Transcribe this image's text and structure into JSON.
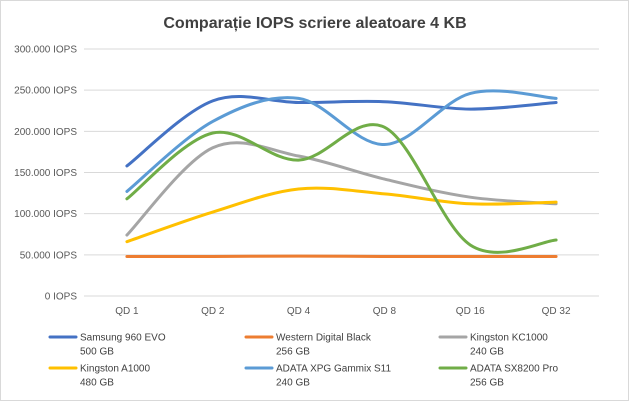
{
  "chart_data": {
    "type": "line",
    "title": "Comparație IOPS scriere aleatoare 4 KB",
    "xlabel": "",
    "ylabel": "",
    "categories": [
      "QD 1",
      "QD 2",
      "QD 4",
      "QD 8",
      "QD 16",
      "QD 32"
    ],
    "ylim": [
      0,
      300000
    ],
    "yticks": [
      0,
      50000,
      100000,
      150000,
      200000,
      250000,
      300000
    ],
    "ytick_labels": [
      "0 IOPS",
      "50.000 IOPS",
      "100.000 IOPS",
      "150.000 IOPS",
      "200.000 IOPS",
      "250.000 IOPS",
      "300.000 IOPS"
    ],
    "grid": true,
    "smooth": true,
    "legend_position": "bottom",
    "series": [
      {
        "name": "Samsung 960 EVO",
        "capacity": "500 GB",
        "color": "#4472C4",
        "values": [
          158000,
          237000,
          235000,
          236000,
          227000,
          235000
        ]
      },
      {
        "name": "Western Digital Black",
        "capacity": "256 GB",
        "color": "#ED7D31",
        "values": [
          48000,
          48000,
          48500,
          48000,
          48000,
          48000
        ]
      },
      {
        "name": "Kingston KC1000",
        "capacity": "240 GB",
        "color": "#A5A5A5",
        "values": [
          74000,
          180000,
          170000,
          142000,
          120000,
          112000
        ]
      },
      {
        "name": "Kingston A1000",
        "capacity": "480 GB",
        "color": "#FFC000",
        "values": [
          66000,
          102000,
          130000,
          124000,
          112000,
          114000
        ]
      },
      {
        "name": "ADATA XPG Gammix S11",
        "capacity": "240 GB",
        "color": "#5B9BD5",
        "values": [
          127000,
          212000,
          240000,
          184000,
          246000,
          240000
        ]
      },
      {
        "name": "ADATA SX8200 Pro",
        "capacity": "256 GB",
        "color": "#70AD47",
        "values": [
          118000,
          198000,
          165000,
          205000,
          62000,
          68000
        ]
      }
    ]
  }
}
